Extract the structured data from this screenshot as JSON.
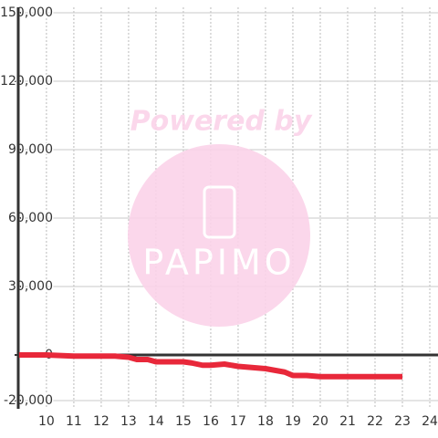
{
  "chart_data": {
    "type": "line",
    "watermark": {
      "top": "Powered by",
      "logo": "PAPIMO"
    },
    "x": [
      9,
      10,
      11,
      12,
      12.5,
      13,
      13.3,
      13.7,
      14,
      15,
      15.3,
      15.7,
      16,
      16.5,
      17,
      17.5,
      18,
      18.7,
      19,
      19.5,
      20,
      21,
      22,
      23
    ],
    "series": [
      {
        "color": "#e8283a",
        "values": [
          0,
          0,
          -500,
          -500,
          -500,
          -1000,
          -2000,
          -2000,
          -3000,
          -3000,
          -3500,
          -4500,
          -4500,
          -4000,
          -5000,
          -5500,
          -6000,
          -7500,
          -9000,
          -9000,
          -9500,
          -9500,
          -9500,
          -9500
        ]
      }
    ],
    "xlim": [
      8.97,
      24.3
    ],
    "xticks": [
      10,
      11,
      12,
      13,
      14,
      15,
      16,
      17,
      18,
      19,
      20,
      21,
      22,
      23,
      24
    ],
    "ylim": [
      -23600,
      152400
    ],
    "yticks": [
      {
        "value": -20000,
        "label": "-20,000"
      },
      0,
      {
        "value": 30000,
        "label": "30,000"
      },
      {
        "value": 60000,
        "label": "60,000"
      },
      {
        "value": 90000,
        "label": "90,000"
      },
      {
        "value": 120000,
        "label": "120,000"
      },
      {
        "value": 150000,
        "label": "150,000"
      }
    ],
    "grid": true
  }
}
